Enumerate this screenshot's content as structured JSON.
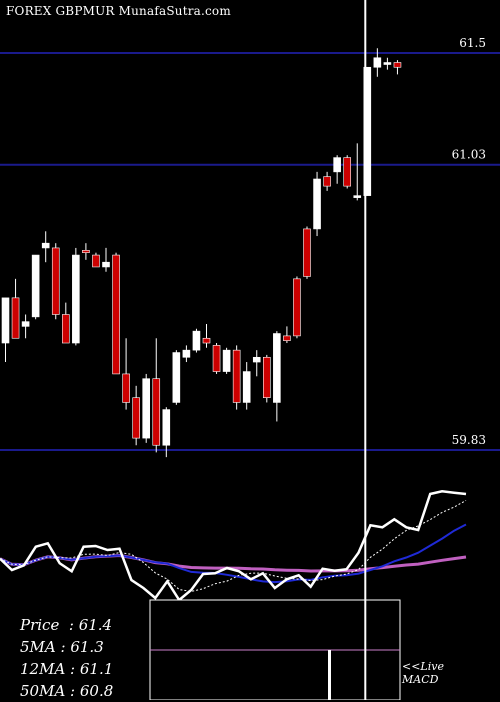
{
  "header": {
    "title": "FOREX  GBPMUR MunafaSutra.com"
  },
  "stats": [
    {
      "label": "Price",
      "value": "61.4"
    },
    {
      "label": "5MA",
      "value": "61.3"
    },
    {
      "label": "12MA",
      "value": "61.1"
    },
    {
      "label": "50MA",
      "value": "60.8"
    }
  ],
  "macd": {
    "live_label": "<<Live",
    "macd_label": "MACD"
  },
  "colors": {
    "background": "#000000",
    "up": "#ffffff",
    "down": "#cc0000",
    "level_line": "#1a1a8c",
    "ma_fast": "#1f2ad6",
    "ma_slow": "#c060c0"
  },
  "chart_data": {
    "type": "candlestick",
    "title": "FOREX  GBPMUR MunafaSutra.com",
    "ylim": [
      59.7,
      61.6
    ],
    "levels": [
      61.5,
      61.03,
      59.83
    ],
    "level_labels": [
      "61.5",
      "61.03",
      "59.83"
    ],
    "candles": [
      {
        "o": 60.28,
        "h": 60.47,
        "l": 60.2,
        "c": 60.47
      },
      {
        "o": 60.47,
        "h": 60.55,
        "l": 60.3,
        "c": 60.3
      },
      {
        "o": 60.35,
        "h": 60.4,
        "l": 60.3,
        "c": 60.37
      },
      {
        "o": 60.39,
        "h": 60.65,
        "l": 60.38,
        "c": 60.65
      },
      {
        "o": 60.68,
        "h": 60.75,
        "l": 60.62,
        "c": 60.7
      },
      {
        "o": 60.68,
        "h": 60.7,
        "l": 60.38,
        "c": 60.4
      },
      {
        "o": 60.4,
        "h": 60.45,
        "l": 60.28,
        "c": 60.28
      },
      {
        "o": 60.28,
        "h": 60.68,
        "l": 60.27,
        "c": 60.65
      },
      {
        "o": 60.67,
        "h": 60.7,
        "l": 60.63,
        "c": 60.66
      },
      {
        "o": 60.65,
        "h": 60.66,
        "l": 60.6,
        "c": 60.6
      },
      {
        "o": 60.6,
        "h": 60.68,
        "l": 60.58,
        "c": 60.62
      },
      {
        "o": 60.65,
        "h": 60.66,
        "l": 60.15,
        "c": 60.15
      },
      {
        "o": 60.15,
        "h": 60.3,
        "l": 60.0,
        "c": 60.03
      },
      {
        "o": 60.05,
        "h": 60.1,
        "l": 59.85,
        "c": 59.88
      },
      {
        "o": 59.88,
        "h": 60.15,
        "l": 59.86,
        "c": 60.13
      },
      {
        "o": 60.13,
        "h": 60.3,
        "l": 59.82,
        "c": 59.85
      },
      {
        "o": 59.85,
        "h": 60.01,
        "l": 59.8,
        "c": 60.0
      },
      {
        "o": 60.03,
        "h": 60.25,
        "l": 60.02,
        "c": 60.24
      },
      {
        "o": 60.22,
        "h": 60.27,
        "l": 60.2,
        "c": 60.25
      },
      {
        "o": 60.25,
        "h": 60.34,
        "l": 60.24,
        "c": 60.33
      },
      {
        "o": 60.3,
        "h": 60.36,
        "l": 60.26,
        "c": 60.28
      },
      {
        "o": 60.27,
        "h": 60.28,
        "l": 60.15,
        "c": 60.16
      },
      {
        "o": 60.16,
        "h": 60.26,
        "l": 60.15,
        "c": 60.25
      },
      {
        "o": 60.25,
        "h": 60.27,
        "l": 60.0,
        "c": 60.03
      },
      {
        "o": 60.03,
        "h": 60.2,
        "l": 60.0,
        "c": 60.16
      },
      {
        "o": 60.2,
        "h": 60.25,
        "l": 60.14,
        "c": 60.22
      },
      {
        "o": 60.22,
        "h": 60.23,
        "l": 60.03,
        "c": 60.05
      },
      {
        "o": 60.03,
        "h": 60.33,
        "l": 59.95,
        "c": 60.32
      },
      {
        "o": 60.31,
        "h": 60.35,
        "l": 60.28,
        "c": 60.29
      },
      {
        "o": 60.55,
        "h": 60.56,
        "l": 60.3,
        "c": 60.31
      },
      {
        "o": 60.76,
        "h": 60.77,
        "l": 60.55,
        "c": 60.56
      },
      {
        "o": 60.76,
        "h": 61.0,
        "l": 60.73,
        "c": 60.97
      },
      {
        "o": 60.98,
        "h": 61.0,
        "l": 60.92,
        "c": 60.94
      },
      {
        "o": 61.0,
        "h": 61.07,
        "l": 60.95,
        "c": 61.06
      },
      {
        "o": 61.06,
        "h": 61.07,
        "l": 60.93,
        "c": 60.94
      },
      {
        "o": 60.9,
        "h": 61.12,
        "l": 60.88,
        "c": 60.9
      },
      {
        "o": 60.9,
        "h": 61.44,
        "l": 60.9,
        "c": 61.44
      },
      {
        "o": 61.44,
        "h": 61.52,
        "l": 61.4,
        "c": 61.48
      },
      {
        "o": 61.46,
        "h": 61.48,
        "l": 61.43,
        "c": 61.46
      },
      {
        "o": 61.46,
        "h": 61.47,
        "l": 61.41,
        "c": 61.44
      }
    ],
    "live_index": 36
  }
}
